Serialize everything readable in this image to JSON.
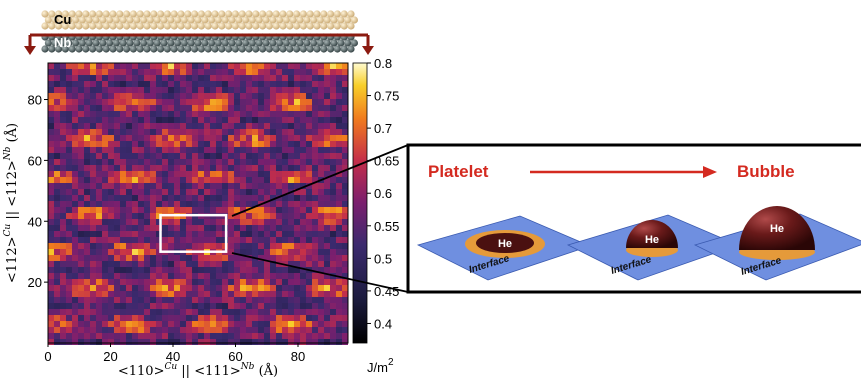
{
  "chart_data": {
    "type": "heatmap",
    "xlabel": "<110>Cu || <111>Nb (Å)",
    "ylabel": "<112>Cu || <112>Nb (Å)",
    "x_ticks": [
      0,
      20,
      40,
      60,
      80
    ],
    "y_ticks": [
      20,
      40,
      60,
      80
    ],
    "xlim": [
      0,
      96
    ],
    "ylim": [
      0,
      92
    ],
    "colorbar": {
      "ticks": [
        0.8,
        0.75,
        0.7,
        0.65,
        0.6,
        0.55,
        0.5,
        0.45,
        0.4
      ],
      "range": [
        0.37,
        0.8
      ],
      "unit": "J/m2",
      "unit_main": "J/m",
      "unit_sup": "2"
    },
    "highlight_box": {
      "x": [
        36,
        57
      ],
      "y": [
        30,
        42
      ]
    }
  },
  "layers": {
    "top": "Cu",
    "bottom": "Nb"
  },
  "inset": {
    "left_label": "Platelet",
    "right_label": "Bubble",
    "particle_label": "He",
    "panel_label": "Interface"
  },
  "colors": {
    "accent_red": "#d42a20",
    "panel_blue": "#6f8fe0",
    "bubble": "#5a1414",
    "ring": "#e59a3a"
  }
}
